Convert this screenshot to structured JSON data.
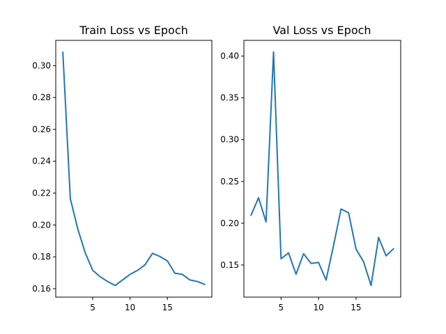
{
  "chart_data": [
    {
      "type": "line",
      "title": "Train Loss vs Epoch",
      "xlabel": "",
      "ylabel": "",
      "x": [
        1,
        2,
        3,
        4,
        5,
        6,
        7,
        8,
        9,
        10,
        11,
        12,
        13,
        14,
        15,
        16,
        17,
        18,
        19,
        20
      ],
      "series": [
        {
          "color": "#1f77b4",
          "values": [
            0.3085,
            0.2165,
            0.1975,
            0.1825,
            0.1715,
            0.1675,
            0.1645,
            0.162,
            0.1655,
            0.169,
            0.1715,
            0.175,
            0.1822,
            0.1802,
            0.1774,
            0.1697,
            0.169,
            0.1655,
            0.1645,
            0.1627
          ]
        }
      ],
      "xlim": [
        0.05,
        20.95
      ],
      "ylim": [
        0.1547,
        0.3159
      ],
      "xticks": [
        5,
        10,
        15
      ],
      "yticks": [
        0.16,
        0.18,
        0.2,
        0.22,
        0.24,
        0.26,
        0.28,
        0.3
      ],
      "xtick_labels": [
        "5",
        "10",
        "15"
      ],
      "ytick_labels": [
        "0.16",
        "0.18",
        "0.20",
        "0.22",
        "0.24",
        "0.26",
        "0.28",
        "0.30"
      ],
      "grid": false,
      "legend": "none"
    },
    {
      "type": "line",
      "title": "Val Loss vs Epoch",
      "xlabel": "",
      "ylabel": "",
      "x": [
        1,
        2,
        3,
        4,
        5,
        6,
        7,
        8,
        9,
        10,
        11,
        12,
        13,
        14,
        15,
        16,
        17,
        18,
        19,
        20
      ],
      "series": [
        {
          "color": "#1f77b4",
          "values": [
            0.2095,
            0.2305,
            0.2015,
            0.405,
            0.1575,
            0.1645,
            0.139,
            0.1635,
            0.152,
            0.153,
            0.132,
            0.1735,
            0.217,
            0.2125,
            0.169,
            0.154,
            0.1255,
            0.183,
            0.161,
            0.1695
          ]
        }
      ],
      "xlim": [
        0.05,
        20.95
      ],
      "ylim": [
        0.1116,
        0.4188
      ],
      "xticks": [
        5,
        10,
        15
      ],
      "yticks": [
        0.15,
        0.2,
        0.25,
        0.3,
        0.35,
        0.4
      ],
      "xtick_labels": [
        "5",
        "10",
        "15"
      ],
      "ytick_labels": [
        "0.15",
        "0.20",
        "0.25",
        "0.30",
        "0.35",
        "0.40"
      ],
      "grid": false,
      "legend": "none"
    }
  ]
}
